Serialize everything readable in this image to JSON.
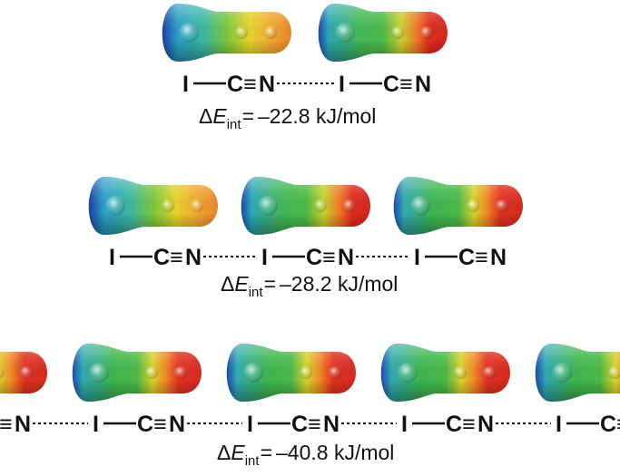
{
  "atom_labels": {
    "iodine": "I",
    "carbon": "C",
    "nitrogen": "N",
    "triple_bond": "≡"
  },
  "rows": [
    {
      "id": "dimer",
      "molecule_count": 2,
      "energy": {
        "delta": "Δ",
        "symbol": "E",
        "subscript": "int",
        "equals": "=",
        "value": "–22.8 kJ/mol"
      }
    },
    {
      "id": "trimer",
      "molecule_count": 3,
      "energy": {
        "delta": "Δ",
        "symbol": "E",
        "subscript": "int",
        "equals": "=",
        "value": "–28.2 kJ/mol"
      }
    },
    {
      "id": "chain",
      "molecule_count": "infinite",
      "energy": {
        "delta": "Δ",
        "symbol": "E",
        "subscript": "int",
        "equals": "=",
        "value": "–40.8 kJ/mol"
      }
    }
  ],
  "esp_colors": {
    "positive": "#1a4fb0",
    "neutral": "#2fb34a",
    "negative": "#e0281c"
  }
}
